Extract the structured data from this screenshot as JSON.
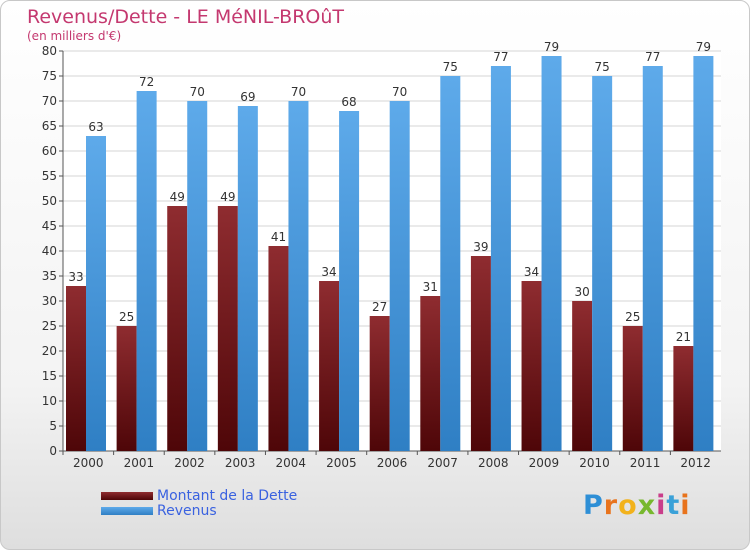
{
  "header": {
    "title": "Revenus/Dette - LE MéNIL-BROûT",
    "subtitle": "(en milliers d'€)"
  },
  "logo": {
    "text": "Proxiti",
    "letter_colors": [
      "#2e8fd6",
      "#e8731c",
      "#f2b21c",
      "#77b82e",
      "#c93d8a",
      "#3aa1d8",
      "#e8731c"
    ]
  },
  "colors": {
    "dette": "#7a1a1e",
    "revenus": "#4f9fe0",
    "axis_text": "#333333",
    "grid": "#d6d6d6"
  },
  "chart_data": {
    "type": "bar",
    "title": "Revenus/Dette - LE MéNIL-BROûT",
    "subtitle": "(en milliers d'€)",
    "categories": [
      "2000",
      "2001",
      "2002",
      "2003",
      "2004",
      "2005",
      "2006",
      "2007",
      "2008",
      "2009",
      "2010",
      "2011",
      "2012"
    ],
    "series": [
      {
        "name": "Montant de la Dette",
        "color": "#7a1a1e",
        "values": [
          33,
          25,
          49,
          49,
          41,
          34,
          27,
          31,
          39,
          34,
          30,
          25,
          21
        ]
      },
      {
        "name": "Revenus",
        "color": "#4f9fe0",
        "values": [
          63,
          72,
          70,
          69,
          70,
          68,
          70,
          75,
          77,
          79,
          75,
          77,
          79
        ]
      }
    ],
    "ylim": [
      0,
      80
    ],
    "yticks": [
      0,
      5,
      10,
      15,
      20,
      25,
      30,
      35,
      40,
      45,
      50,
      55,
      60,
      65,
      70,
      75,
      80
    ],
    "grid": true,
    "legend_position": "bottom-left",
    "data_labels": true
  }
}
